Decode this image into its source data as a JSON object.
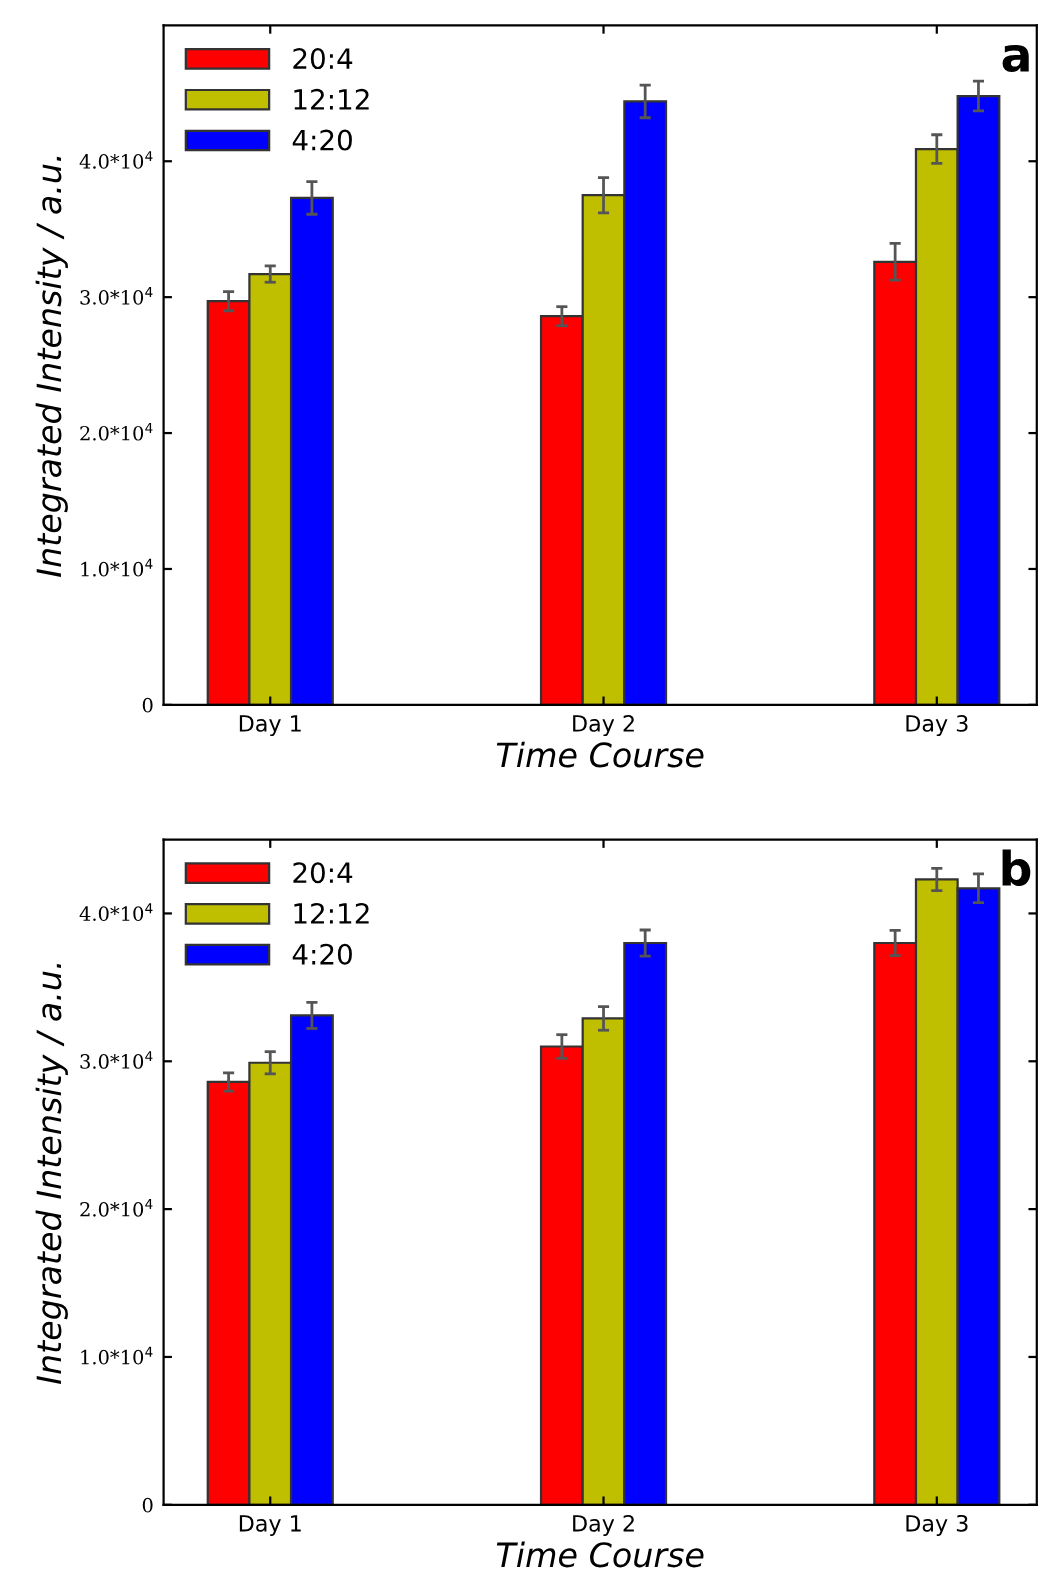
{
  "chart_data": [
    {
      "type": "bar",
      "categories": [
        "Day 1",
        "Day 2",
        "Day 3"
      ],
      "xlabel": "Time Course",
      "ylabel": "Integrated Intensity / a.u.",
      "annotations": [
        "a"
      ],
      "series": [
        {
          "name": "20:4",
          "color": "#ff0000",
          "values": [
            29700,
            28600,
            32600
          ],
          "errors": [
            700,
            700,
            1350
          ]
        },
        {
          "name": "12:12",
          "color": "#bfbf00",
          "values": [
            31700,
            37500,
            40900
          ],
          "errors": [
            600,
            1300,
            1050
          ]
        },
        {
          "name": "4:20",
          "color": "#0000ff",
          "values": [
            37300,
            44400,
            44800
          ],
          "errors": [
            1200,
            1200,
            1100
          ]
        }
      ],
      "ylim": [
        0,
        50000
      ],
      "yticks": [
        0,
        {
          "value": 10000,
          "label": "1.0*10$^{4}$"
        },
        {
          "value": 20000,
          "label": "2.0*10$^{4}$"
        },
        {
          "value": 30000,
          "label": "3.0*10$^{4}$"
        },
        {
          "value": 40000,
          "label": "4.0*10$^{4}$"
        }
      ],
      "grid": false,
      "legend": "top left"
    },
    {
      "type": "bar",
      "categories": [
        "Day 1",
        "Day 2",
        "Day 3"
      ],
      "xlabel": "Time Course",
      "ylabel": "Integrated Intensity / a.u.",
      "annotations": [
        "b"
      ],
      "series": [
        {
          "name": "20:4",
          "color": "#ff0000",
          "values": [
            28600,
            31000,
            38000
          ],
          "errors": [
            620,
            800,
            850
          ]
        },
        {
          "name": "12:12",
          "color": "#bfbf00",
          "values": [
            29900,
            32900,
            42300
          ],
          "errors": [
            750,
            800,
            750
          ]
        },
        {
          "name": "4:20",
          "color": "#0000ff",
          "values": [
            33100,
            38000,
            41700
          ],
          "errors": [
            880,
            880,
            970
          ]
        }
      ],
      "ylim": [
        0,
        45000
      ],
      "yticks": [
        0,
        {
          "value": 10000,
          "label": "1.0*10$^{4}$"
        },
        {
          "value": 20000,
          "label": "2.0*10$^{4}$"
        },
        {
          "value": 30000,
          "label": "3.0*10$^{4}$"
        },
        {
          "value": 40000,
          "label": "4.0*10$^{4}$"
        }
      ],
      "grid": false,
      "legend": "top left"
    }
  ]
}
